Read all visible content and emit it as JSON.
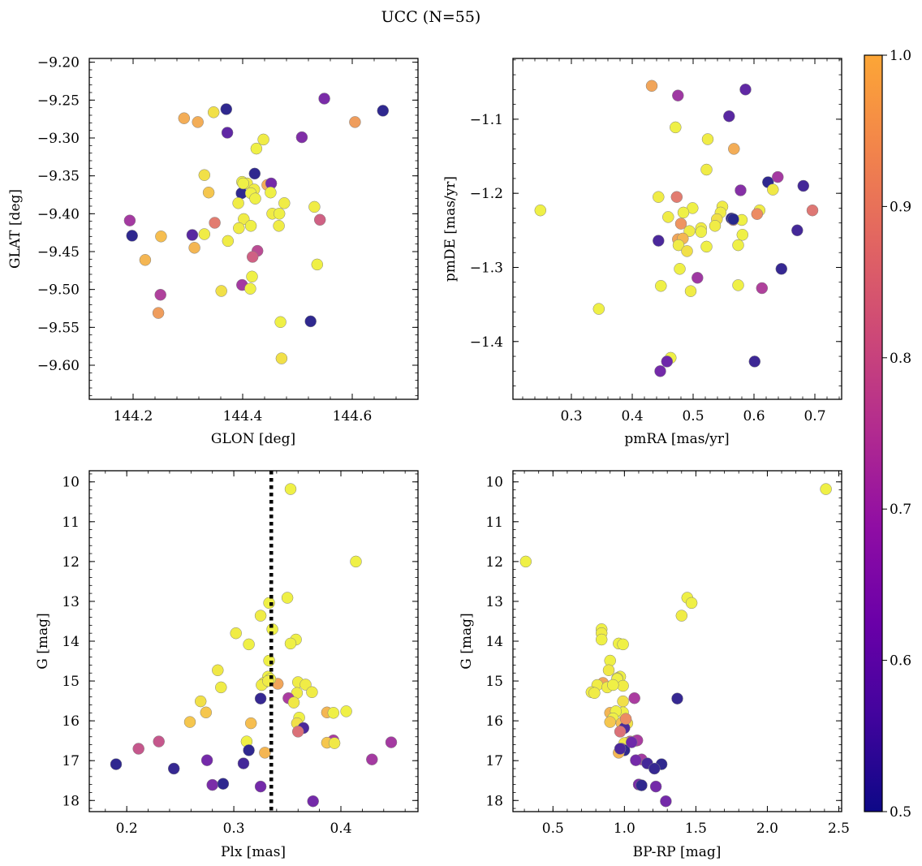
{
  "title": "UCC (N=55)",
  "colorbar": {
    "min": 0.5,
    "max": 1.0,
    "ticks": [
      "0.5",
      "0.6",
      "0.7",
      "0.8",
      "0.9",
      "1.0"
    ],
    "colormap": "plasma"
  },
  "chart_data": [
    {
      "type": "scatter",
      "id": "glon_glat",
      "xlabel": "GLON [deg]",
      "ylabel": "GLAT [deg]",
      "xlim": [
        144.12,
        144.72
      ],
      "ylim": [
        -9.645,
        -9.195
      ],
      "invert_y": false,
      "xticks": [
        144.2,
        144.4,
        144.6
      ],
      "xtick_labels": [
        "144.2",
        "144.4",
        "144.6"
      ],
      "yticks": [
        -9.2,
        -9.25,
        -9.3,
        -9.35,
        -9.4,
        -9.45,
        -9.5,
        -9.55,
        -9.6
      ],
      "ytick_labels": [
        "−9.20",
        "−9.25",
        "−9.30",
        "−9.35",
        "−9.40",
        "−9.45",
        "−9.50",
        "−9.55",
        "−9.60"
      ],
      "points": [
        [
          144.37,
          -9.262,
          0.51
        ],
        [
          144.549,
          -9.248,
          0.62
        ],
        [
          144.656,
          -9.264,
          0.51
        ],
        [
          144.293,
          -9.274,
          0.89
        ],
        [
          144.318,
          -9.279,
          0.89
        ],
        [
          144.347,
          -9.266,
          0.95
        ],
        [
          144.605,
          -9.279,
          0.87
        ],
        [
          144.372,
          -9.293,
          0.58
        ],
        [
          144.508,
          -9.299,
          0.63
        ],
        [
          144.438,
          -9.302,
          0.97
        ],
        [
          144.425,
          -9.314,
          0.98
        ],
        [
          144.422,
          -9.347,
          0.51
        ],
        [
          144.33,
          -9.349,
          0.95
        ],
        [
          144.399,
          -9.358,
          0.98
        ],
        [
          144.408,
          -9.36,
          0.97
        ],
        [
          144.445,
          -9.362,
          0.89
        ],
        [
          144.452,
          -9.36,
          0.61
        ],
        [
          144.421,
          -9.368,
          0.97
        ],
        [
          144.338,
          -9.372,
          0.92
        ],
        [
          144.398,
          -9.373,
          0.51
        ],
        [
          144.415,
          -9.373,
          0.98
        ],
        [
          144.451,
          -9.372,
          0.98
        ],
        [
          144.423,
          -9.38,
          0.98
        ],
        [
          144.392,
          -9.386,
          0.97
        ],
        [
          144.476,
          -9.386,
          0.97
        ],
        [
          144.531,
          -9.391,
          0.97
        ],
        [
          144.454,
          -9.4,
          0.97
        ],
        [
          144.467,
          -9.4,
          0.98
        ],
        [
          144.402,
          -9.407,
          0.97
        ],
        [
          144.194,
          -9.409,
          0.69
        ],
        [
          144.541,
          -9.408,
          0.77
        ],
        [
          144.349,
          -9.412,
          0.82
        ],
        [
          144.466,
          -9.416,
          0.97
        ],
        [
          144.415,
          -9.416,
          0.98
        ],
        [
          144.393,
          -9.419,
          0.97
        ],
        [
          144.198,
          -9.429,
          0.51
        ],
        [
          144.251,
          -9.43,
          0.91
        ],
        [
          144.308,
          -9.428,
          0.57
        ],
        [
          144.33,
          -9.427,
          0.97
        ],
        [
          144.373,
          -9.436,
          0.97
        ],
        [
          144.312,
          -9.445,
          0.9
        ],
        [
          144.427,
          -9.449,
          0.73
        ],
        [
          144.418,
          -9.457,
          0.77
        ],
        [
          144.222,
          -9.461,
          0.9
        ],
        [
          144.417,
          -9.483,
          0.98
        ],
        [
          144.536,
          -9.467,
          0.98
        ],
        [
          144.399,
          -9.494,
          0.69
        ],
        [
          144.414,
          -9.499,
          0.98
        ],
        [
          144.361,
          -9.502,
          0.95
        ],
        [
          144.25,
          -9.507,
          0.71
        ],
        [
          144.246,
          -9.531,
          0.87
        ],
        [
          144.524,
          -9.542,
          0.51
        ],
        [
          144.469,
          -9.543,
          0.98
        ],
        [
          144.471,
          -9.591,
          0.95
        ],
        [
          144.401,
          -9.36,
          0.98
        ]
      ]
    },
    {
      "type": "scatter",
      "id": "pmra_pmde",
      "xlabel": "pmRA [mas/yr]",
      "ylabel": "pmDE [mas/yr]",
      "xlim": [
        0.204,
        0.744
      ],
      "ylim": [
        -1.478,
        -1.018
      ],
      "invert_y": false,
      "xticks": [
        0.3,
        0.4,
        0.5,
        0.6,
        0.7
      ],
      "xtick_labels": [
        "0.3",
        "0.4",
        "0.5",
        "0.6",
        "0.7"
      ],
      "yticks": [
        -1.4,
        -1.3,
        -1.2,
        -1.1
      ],
      "ytick_labels": [
        "−1.4",
        "−1.3",
        "−1.2",
        "−1.1"
      ],
      "points": [
        [
          0.432,
          -1.055,
          0.88
        ],
        [
          0.475,
          -1.068,
          0.68
        ],
        [
          0.586,
          -1.06,
          0.58
        ],
        [
          0.559,
          -1.096,
          0.57
        ],
        [
          0.471,
          -1.111,
          0.98
        ],
        [
          0.524,
          -1.127,
          0.97
        ],
        [
          0.567,
          -1.14,
          0.89
        ],
        [
          0.522,
          -1.168,
          0.97
        ],
        [
          0.623,
          -1.185,
          0.51
        ],
        [
          0.639,
          -1.178,
          0.69
        ],
        [
          0.681,
          -1.19,
          0.54
        ],
        [
          0.578,
          -1.196,
          0.64
        ],
        [
          0.631,
          -1.195,
          0.96
        ],
        [
          0.443,
          -1.205,
          0.97
        ],
        [
          0.473,
          -1.205,
          0.82
        ],
        [
          0.499,
          -1.22,
          0.98
        ],
        [
          0.249,
          -1.223,
          0.98
        ],
        [
          0.696,
          -1.223,
          0.81
        ],
        [
          0.548,
          -1.218,
          0.97
        ],
        [
          0.609,
          -1.223,
          0.97
        ],
        [
          0.484,
          -1.226,
          0.98
        ],
        [
          0.605,
          -1.228,
          0.85
        ],
        [
          0.545,
          -1.226,
          0.97
        ],
        [
          0.459,
          -1.232,
          0.97
        ],
        [
          0.539,
          -1.235,
          0.95
        ],
        [
          0.563,
          -1.234,
          0.51
        ],
        [
          0.566,
          -1.236,
          0.83
        ],
        [
          0.58,
          -1.236,
          0.98
        ],
        [
          0.48,
          -1.241,
          0.86
        ],
        [
          0.536,
          -1.244,
          0.97
        ],
        [
          0.513,
          -1.247,
          0.97
        ],
        [
          0.513,
          -1.252,
          0.98
        ],
        [
          0.494,
          -1.251,
          0.97
        ],
        [
          0.671,
          -1.25,
          0.54
        ],
        [
          0.581,
          -1.256,
          0.98
        ],
        [
          0.475,
          -1.262,
          0.88
        ],
        [
          0.443,
          -1.264,
          0.55
        ],
        [
          0.483,
          -1.261,
          0.9
        ],
        [
          0.476,
          -1.27,
          0.97
        ],
        [
          0.522,
          -1.272,
          0.98
        ],
        [
          0.574,
          -1.27,
          0.98
        ],
        [
          0.49,
          -1.278,
          0.95
        ],
        [
          0.478,
          -1.302,
          0.98
        ],
        [
          0.645,
          -1.302,
          0.52
        ],
        [
          0.507,
          -1.314,
          0.68
        ],
        [
          0.447,
          -1.325,
          0.98
        ],
        [
          0.574,
          -1.324,
          0.98
        ],
        [
          0.613,
          -1.328,
          0.71
        ],
        [
          0.496,
          -1.332,
          0.97
        ],
        [
          0.345,
          -1.356,
          0.98
        ],
        [
          0.463,
          -1.422,
          0.98
        ],
        [
          0.457,
          -1.427,
          0.6
        ],
        [
          0.601,
          -1.427,
          0.53
        ],
        [
          0.446,
          -1.44,
          0.61
        ],
        [
          0.566,
          -1.235,
          0.5
        ]
      ]
    },
    {
      "type": "scatter",
      "id": "plx_g",
      "xlabel": "Plx [mas]",
      "ylabel": "G [mag]",
      "xlim": [
        0.165,
        0.472
      ],
      "ylim": [
        9.72,
        18.28
      ],
      "invert_y": true,
      "vline": 0.335,
      "xticks": [
        0.2,
        0.3,
        0.4
      ],
      "xtick_labels": [
        "0.2",
        "0.3",
        "0.4"
      ],
      "yticks": [
        10,
        11,
        12,
        13,
        14,
        15,
        16,
        17,
        18
      ],
      "ytick_labels": [
        "10",
        "11",
        "12",
        "13",
        "14",
        "15",
        "16",
        "17",
        "18"
      ],
      "points": [
        [
          0.353,
          10.18,
          0.98
        ],
        [
          0.414,
          12.0,
          0.98
        ],
        [
          0.35,
          12.91,
          0.98
        ],
        [
          0.333,
          13.04,
          0.98
        ],
        [
          0.325,
          13.36,
          0.97
        ],
        [
          0.336,
          13.7,
          0.98
        ],
        [
          0.302,
          13.8,
          0.97
        ],
        [
          0.358,
          13.96,
          0.98
        ],
        [
          0.353,
          14.06,
          0.98
        ],
        [
          0.314,
          14.08,
          0.98
        ],
        [
          0.333,
          14.49,
          0.98
        ],
        [
          0.285,
          14.73,
          0.96
        ],
        [
          0.332,
          14.89,
          0.98
        ],
        [
          0.328,
          15.05,
          0.96
        ],
        [
          0.341,
          15.07,
          0.88
        ],
        [
          0.326,
          15.1,
          0.97
        ],
        [
          0.36,
          15.03,
          0.97
        ],
        [
          0.288,
          15.16,
          0.97
        ],
        [
          0.367,
          15.09,
          0.97
        ],
        [
          0.359,
          15.3,
          0.97
        ],
        [
          0.373,
          15.28,
          0.97
        ],
        [
          0.325,
          15.44,
          0.52
        ],
        [
          0.351,
          15.43,
          0.7
        ],
        [
          0.269,
          15.51,
          0.95
        ],
        [
          0.356,
          15.54,
          0.96
        ],
        [
          0.274,
          15.79,
          0.92
        ],
        [
          0.387,
          15.79,
          0.9
        ],
        [
          0.393,
          15.8,
          0.98
        ],
        [
          0.405,
          15.76,
          0.98
        ],
        [
          0.361,
          15.92,
          0.98
        ],
        [
          0.259,
          16.03,
          0.92
        ],
        [
          0.316,
          16.06,
          0.91
        ],
        [
          0.359,
          16.06,
          0.95
        ],
        [
          0.365,
          16.18,
          0.55
        ],
        [
          0.36,
          16.27,
          0.8
        ],
        [
          0.312,
          16.52,
          0.98
        ],
        [
          0.23,
          16.52,
          0.75
        ],
        [
          0.393,
          16.49,
          0.7
        ],
        [
          0.387,
          16.55,
          0.92
        ],
        [
          0.394,
          16.56,
          0.96
        ],
        [
          0.447,
          16.54,
          0.69
        ],
        [
          0.211,
          16.7,
          0.75
        ],
        [
          0.314,
          16.74,
          0.51
        ],
        [
          0.329,
          16.8,
          0.9
        ],
        [
          0.429,
          16.97,
          0.69
        ],
        [
          0.275,
          16.99,
          0.61
        ],
        [
          0.309,
          17.07,
          0.54
        ],
        [
          0.19,
          17.09,
          0.51
        ],
        [
          0.244,
          17.2,
          0.52
        ],
        [
          0.28,
          17.61,
          0.62
        ],
        [
          0.29,
          17.58,
          0.51
        ],
        [
          0.325,
          17.65,
          0.61
        ],
        [
          0.374,
          18.02,
          0.61
        ],
        [
          0.334,
          14.95,
          0.98
        ],
        [
          0.332,
          15.0,
          0.97
        ]
      ]
    },
    {
      "type": "scatter",
      "id": "bprp_g",
      "xlabel": "BP-RP [mag]",
      "ylabel": "G [mag]",
      "xlim": [
        0.22,
        2.52
      ],
      "ylim": [
        9.72,
        18.28
      ],
      "invert_y": true,
      "xticks": [
        0.5,
        1.0,
        1.5,
        2.0,
        2.5
      ],
      "xtick_labels": [
        "0.5",
        "1.0",
        "1.5",
        "2.0",
        "2.5"
      ],
      "yticks": [
        10,
        11,
        12,
        13,
        14,
        15,
        16,
        17,
        18
      ],
      "ytick_labels": [
        "10",
        "11",
        "12",
        "13",
        "14",
        "15",
        "16",
        "17",
        "18"
      ],
      "points": [
        [
          2.41,
          10.18,
          0.98
        ],
        [
          0.31,
          12.0,
          0.98
        ],
        [
          1.44,
          12.91,
          0.98
        ],
        [
          1.47,
          13.04,
          0.98
        ],
        [
          1.4,
          13.36,
          0.97
        ],
        [
          0.84,
          13.7,
          0.98
        ],
        [
          0.84,
          13.8,
          0.97
        ],
        [
          0.84,
          13.96,
          0.98
        ],
        [
          0.96,
          14.06,
          0.98
        ],
        [
          0.99,
          14.08,
          0.98
        ],
        [
          0.9,
          14.49,
          0.98
        ],
        [
          0.89,
          14.73,
          0.96
        ],
        [
          0.97,
          14.89,
          0.98
        ],
        [
          0.95,
          14.93,
          0.96
        ],
        [
          0.85,
          15.05,
          0.88
        ],
        [
          0.81,
          15.1,
          0.97
        ],
        [
          0.88,
          15.16,
          0.97
        ],
        [
          0.77,
          15.28,
          0.97
        ],
        [
          0.79,
          15.3,
          0.97
        ],
        [
          1.37,
          15.44,
          0.52
        ],
        [
          1.07,
          15.43,
          0.7
        ],
        [
          0.99,
          15.51,
          0.95
        ],
        [
          0.94,
          15.76,
          0.92
        ],
        [
          0.9,
          15.8,
          0.9
        ],
        [
          0.99,
          15.79,
          0.98
        ],
        [
          0.94,
          15.76,
          0.98
        ],
        [
          0.92,
          15.94,
          0.98
        ],
        [
          0.9,
          16.03,
          0.92
        ],
        [
          0.98,
          16.06,
          0.91
        ],
        [
          1.02,
          16.06,
          0.95
        ],
        [
          1.0,
          16.18,
          0.55
        ],
        [
          0.97,
          16.27,
          0.8
        ],
        [
          1.08,
          16.5,
          0.98
        ],
        [
          1.04,
          16.52,
          0.75
        ],
        [
          1.09,
          16.49,
          0.7
        ],
        [
          1.02,
          16.55,
          0.92
        ],
        [
          1.0,
          16.56,
          0.96
        ],
        [
          0.98,
          16.7,
          0.75
        ],
        [
          1.0,
          16.74,
          0.51
        ],
        [
          0.96,
          16.8,
          0.9
        ],
        [
          1.12,
          16.97,
          0.69
        ],
        [
          1.08,
          16.99,
          0.61
        ],
        [
          1.16,
          17.07,
          0.54
        ],
        [
          1.26,
          17.09,
          0.51
        ],
        [
          1.21,
          17.2,
          0.52
        ],
        [
          1.1,
          17.6,
          0.62
        ],
        [
          1.12,
          17.62,
          0.51
        ],
        [
          1.22,
          17.65,
          0.61
        ],
        [
          1.29,
          18.02,
          0.61
        ],
        [
          0.95,
          14.95,
          0.98
        ],
        [
          0.99,
          15.12,
          0.97
        ],
        [
          1.01,
          15.95,
          0.85
        ],
        [
          0.97,
          16.7,
          0.55
        ],
        [
          1.05,
          16.54,
          0.6
        ],
        [
          0.92,
          15.1,
          0.98
        ]
      ]
    }
  ]
}
